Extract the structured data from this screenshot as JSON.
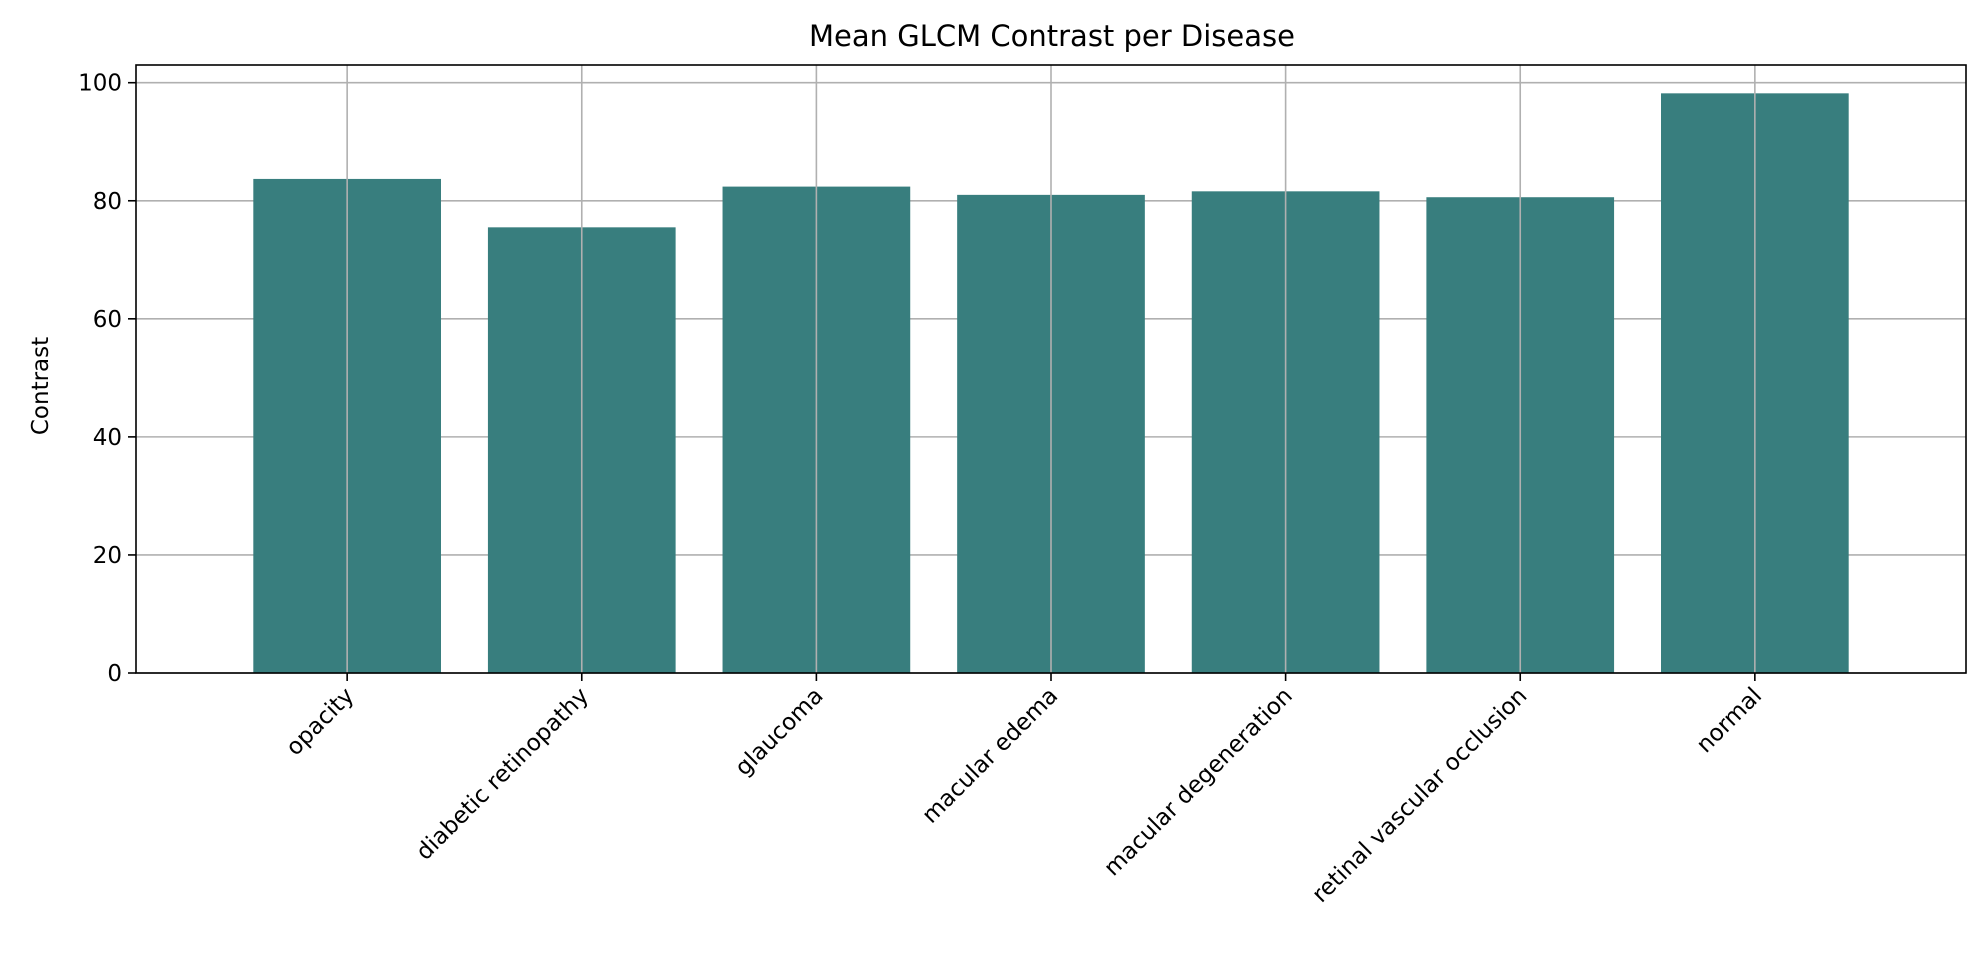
{
  "chart_data": {
    "type": "bar",
    "title": "Mean GLCM Contrast per Disease",
    "xlabel": "",
    "ylabel": "Contrast",
    "categories": [
      "opacity",
      "diabetic retinopathy",
      "glaucoma",
      "macular edema",
      "macular degeneration",
      "retinal vascular occlusion",
      "normal"
    ],
    "values": [
      83.7,
      75.5,
      82.4,
      81.0,
      81.6,
      80.6,
      98.2
    ],
    "ylim": [
      0,
      103
    ],
    "yticks": [
      0,
      20,
      40,
      60,
      80,
      100
    ],
    "grid": true,
    "legend": "none",
    "bar_color": "#387e7e",
    "grid_color": "#b0b0b0"
  }
}
